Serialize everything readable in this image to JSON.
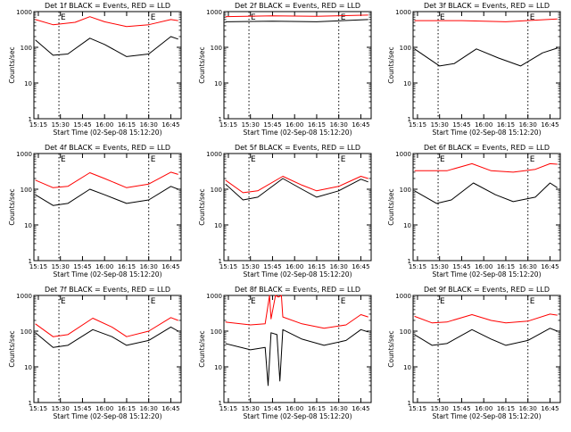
{
  "chart_data": [
    {
      "type": "line",
      "title": "Det 1f BLACK = Events, RED = LLD",
      "xlabel": "Start Time (02-Sep-08 15:12:20)",
      "ylabel": "Counts/sec",
      "yscale": "log",
      "ylim": [
        1,
        1000
      ],
      "x_ticks": [
        "15:15",
        "15:30",
        "15:45",
        "16:00",
        "16:15",
        "16:30",
        "16:45"
      ],
      "x_domain": [
        "15:12",
        "16:52"
      ],
      "markers": [
        {
          "time": "15:29",
          "label": "E"
        },
        {
          "time": "16:30",
          "label": "E"
        }
      ],
      "series": [
        {
          "color": "#ff0000",
          "points": [
            [
              "15:13",
              600
            ],
            [
              "15:25",
              430
            ],
            [
              "15:40",
              500
            ],
            [
              "15:50",
              720
            ],
            [
              "16:00",
              520
            ],
            [
              "16:15",
              380
            ],
            [
              "16:30",
              430
            ],
            [
              "16:45",
              600
            ],
            [
              "16:50",
              560
            ]
          ]
        },
        {
          "color": "#000000",
          "points": [
            [
              "15:13",
              160
            ],
            [
              "15:25",
              60
            ],
            [
              "15:35",
              65
            ],
            [
              "15:50",
              180
            ],
            [
              "16:00",
              120
            ],
            [
              "16:15",
              55
            ],
            [
              "16:30",
              65
            ],
            [
              "16:45",
              200
            ],
            [
              "16:50",
              170
            ]
          ]
        }
      ]
    },
    {
      "type": "line",
      "title": "Det 2f BLACK = Events, RED = LLD",
      "xlabel": "Start Time (02-Sep-08 15:12:20)",
      "ylabel": "Counts/sec",
      "yscale": "log",
      "ylim": [
        1,
        1000
      ],
      "x_ticks": [
        "15:15",
        "15:30",
        "15:45",
        "16:00",
        "16:15",
        "16:30",
        "16:45"
      ],
      "x_domain": [
        "15:12",
        "16:52"
      ],
      "markers": [
        {
          "time": "15:29",
          "label": "E"
        },
        {
          "time": "16:30",
          "label": "E"
        }
      ],
      "series": [
        {
          "color": "#ff0000",
          "points": [
            [
              "15:13",
              720
            ],
            [
              "15:45",
              760
            ],
            [
              "16:15",
              740
            ],
            [
              "16:50",
              800
            ]
          ]
        },
        {
          "color": "#000000",
          "points": [
            [
              "15:13",
              520
            ],
            [
              "15:45",
              540
            ],
            [
              "16:15",
              520
            ],
            [
              "16:50",
              600
            ]
          ]
        }
      ]
    },
    {
      "type": "line",
      "title": "Det 3f BLACK = Events, RED = LLD",
      "xlabel": "Start Time (02-Sep-08 15:12:20)",
      "ylabel": "Counts/sec",
      "yscale": "log",
      "ylim": [
        1,
        1000
      ],
      "x_ticks": [
        "15:15",
        "15:30",
        "15:45",
        "16:00",
        "16:15",
        "16:30",
        "16:45"
      ],
      "x_domain": [
        "15:12",
        "16:52"
      ],
      "markers": [
        {
          "time": "15:29",
          "label": "E"
        },
        {
          "time": "16:30",
          "label": "E"
        }
      ],
      "series": [
        {
          "color": "#ff0000",
          "points": [
            [
              "15:13",
              560
            ],
            [
              "15:45",
              560
            ],
            [
              "16:15",
              520
            ],
            [
              "16:50",
              620
            ]
          ]
        },
        {
          "color": "#000000",
          "points": [
            [
              "15:13",
              90
            ],
            [
              "15:30",
              30
            ],
            [
              "15:40",
              35
            ],
            [
              "15:55",
              90
            ],
            [
              "16:10",
              50
            ],
            [
              "16:25",
              30
            ],
            [
              "16:40",
              70
            ],
            [
              "16:50",
              95
            ]
          ]
        }
      ]
    },
    {
      "type": "line",
      "title": "Det 4f BLACK = Events, RED = LLD",
      "xlabel": "Start Time (02-Sep-08 15:12:20)",
      "ylabel": "Counts/sec",
      "yscale": "log",
      "ylim": [
        1,
        1000
      ],
      "x_ticks": [
        "15:15",
        "15:30",
        "15:45",
        "16:00",
        "16:15",
        "16:30",
        "16:45"
      ],
      "x_domain": [
        "15:12",
        "16:52"
      ],
      "markers": [
        {
          "time": "15:29",
          "label": "E"
        },
        {
          "time": "16:30",
          "label": "E"
        }
      ],
      "series": [
        {
          "color": "#ff0000",
          "points": [
            [
              "15:13",
              180
            ],
            [
              "15:25",
              110
            ],
            [
              "15:35",
              120
            ],
            [
              "15:50",
              290
            ],
            [
              "16:00",
              200
            ],
            [
              "16:15",
              110
            ],
            [
              "16:30",
              140
            ],
            [
              "16:45",
              300
            ],
            [
              "16:50",
              260
            ]
          ]
        },
        {
          "color": "#000000",
          "points": [
            [
              "15:13",
              70
            ],
            [
              "15:25",
              35
            ],
            [
              "15:35",
              40
            ],
            [
              "15:50",
              100
            ],
            [
              "16:00",
              70
            ],
            [
              "16:15",
              40
            ],
            [
              "16:30",
              50
            ],
            [
              "16:45",
              120
            ],
            [
              "16:50",
              100
            ]
          ]
        }
      ]
    },
    {
      "type": "line",
      "title": "Det 5f BLACK = Events, RED = LLD",
      "xlabel": "Start Time (02-Sep-08 15:12:20)",
      "ylabel": "Counts/sec",
      "yscale": "log",
      "ylim": [
        1,
        1000
      ],
      "x_ticks": [
        "15:15",
        "15:30",
        "15:45",
        "16:00",
        "16:15",
        "16:30",
        "16:45"
      ],
      "x_domain": [
        "15:12",
        "16:52"
      ],
      "markers": [
        {
          "time": "15:29",
          "label": "E"
        },
        {
          "time": "16:30",
          "label": "E"
        }
      ],
      "series": [
        {
          "color": "#ff0000",
          "points": [
            [
              "15:13",
              180
            ],
            [
              "15:25",
              80
            ],
            [
              "15:35",
              90
            ],
            [
              "15:52",
              230
            ],
            [
              "16:05",
              130
            ],
            [
              "16:15",
              90
            ],
            [
              "16:30",
              120
            ],
            [
              "16:45",
              230
            ],
            [
              "16:50",
              200
            ]
          ]
        },
        {
          "color": "#000000",
          "points": [
            [
              "15:13",
              140
            ],
            [
              "15:25",
              50
            ],
            [
              "15:35",
              60
            ],
            [
              "15:52",
              200
            ],
            [
              "16:05",
              100
            ],
            [
              "16:15",
              60
            ],
            [
              "16:30",
              90
            ],
            [
              "16:45",
              190
            ],
            [
              "16:50",
              160
            ]
          ]
        }
      ]
    },
    {
      "type": "line",
      "title": "Det 6f BLACK = Events, RED = LLD",
      "xlabel": "Start Time (02-Sep-08 15:12:20)",
      "ylabel": "Counts/sec",
      "yscale": "log",
      "ylim": [
        1,
        1000
      ],
      "x_ticks": [
        "15:15",
        "15:30",
        "15:45",
        "16:00",
        "16:15",
        "16:30",
        "16:45"
      ],
      "x_domain": [
        "15:12",
        "16:52"
      ],
      "markers": [
        {
          "time": "15:29",
          "label": "E"
        },
        {
          "time": "16:30",
          "label": "E"
        }
      ],
      "series": [
        {
          "color": "#ff0000",
          "points": [
            [
              "15:13",
              330
            ],
            [
              "15:35",
              330
            ],
            [
              "15:52",
              520
            ],
            [
              "16:05",
              330
            ],
            [
              "16:20",
              300
            ],
            [
              "16:35",
              360
            ],
            [
              "16:45",
              520
            ],
            [
              "16:50",
              500
            ]
          ]
        },
        {
          "color": "#000000",
          "points": [
            [
              "15:13",
              90
            ],
            [
              "15:28",
              40
            ],
            [
              "15:38",
              50
            ],
            [
              "15:53",
              150
            ],
            [
              "16:08",
              70
            ],
            [
              "16:20",
              45
            ],
            [
              "16:35",
              60
            ],
            [
              "16:45",
              150
            ],
            [
              "16:50",
              110
            ]
          ]
        }
      ]
    },
    {
      "type": "line",
      "title": "Det 7f BLACK = Events, RED = LLD",
      "xlabel": "Start Time (02-Sep-08 15:12:20)",
      "ylabel": "Counts/sec",
      "yscale": "log",
      "ylim": [
        1,
        1000
      ],
      "x_ticks": [
        "15:15",
        "15:30",
        "15:45",
        "16:00",
        "16:15",
        "16:30",
        "16:45"
      ],
      "x_domain": [
        "15:12",
        "16:52"
      ],
      "markers": [
        {
          "time": "15:29",
          "label": "E"
        },
        {
          "time": "16:30",
          "label": "E"
        }
      ],
      "series": [
        {
          "color": "#ff0000",
          "points": [
            [
              "15:13",
              160
            ],
            [
              "15:25",
              70
            ],
            [
              "15:35",
              80
            ],
            [
              "15:52",
              230
            ],
            [
              "16:05",
              130
            ],
            [
              "16:15",
              70
            ],
            [
              "16:30",
              100
            ],
            [
              "16:45",
              240
            ],
            [
              "16:50",
              200
            ]
          ]
        },
        {
          "color": "#000000",
          "points": [
            [
              "15:13",
              90
            ],
            [
              "15:25",
              35
            ],
            [
              "15:35",
              40
            ],
            [
              "15:52",
              110
            ],
            [
              "16:05",
              70
            ],
            [
              "16:15",
              40
            ],
            [
              "16:30",
              55
            ],
            [
              "16:45",
              130
            ],
            [
              "16:50",
              100
            ]
          ]
        }
      ]
    },
    {
      "type": "line",
      "title": "Det 8f BLACK = Events, RED = LLD",
      "xlabel": "Start Time (02-Sep-08 15:12:20)",
      "ylabel": "Counts/sec",
      "yscale": "log",
      "ylim": [
        1,
        1000
      ],
      "x_ticks": [
        "15:15",
        "15:30",
        "15:45",
        "16:00",
        "16:15",
        "16:30",
        "16:45"
      ],
      "x_domain": [
        "15:12",
        "16:52"
      ],
      "markers": [
        {
          "time": "15:29",
          "label": "E"
        },
        {
          "time": "16:30",
          "label": "E"
        }
      ],
      "series": [
        {
          "color": "#ff0000",
          "points": [
            [
              "15:13",
              180
            ],
            [
              "15:30",
              150
            ],
            [
              "15:40",
              160
            ],
            [
              "15:43",
              1000
            ],
            [
              "15:44",
              220
            ],
            [
              "15:47",
              1000
            ],
            [
              "15:49",
              900
            ],
            [
              "15:51",
              1000
            ],
            [
              "15:52",
              250
            ],
            [
              "16:05",
              160
            ],
            [
              "16:20",
              120
            ],
            [
              "16:35",
              150
            ],
            [
              "16:45",
              290
            ],
            [
              "16:50",
              250
            ]
          ]
        },
        {
          "color": "#000000",
          "points": [
            [
              "15:13",
              45
            ],
            [
              "15:30",
              30
            ],
            [
              "15:40",
              35
            ],
            [
              "15:42",
              3
            ],
            [
              "15:44",
              90
            ],
            [
              "15:48",
              80
            ],
            [
              "15:50",
              4
            ],
            [
              "15:52",
              110
            ],
            [
              "16:05",
              60
            ],
            [
              "16:20",
              40
            ],
            [
              "16:35",
              55
            ],
            [
              "16:45",
              110
            ],
            [
              "16:50",
              95
            ]
          ]
        }
      ]
    },
    {
      "type": "line",
      "title": "Det 9f BLACK = Events, RED = LLD",
      "xlabel": "Start Time (02-Sep-08 15:12:20)",
      "ylabel": "Counts/sec",
      "yscale": "log",
      "ylim": [
        1,
        1000
      ],
      "x_ticks": [
        "15:15",
        "15:30",
        "15:45",
        "16:00",
        "16:15",
        "16:30",
        "16:45"
      ],
      "x_domain": [
        "15:12",
        "16:52"
      ],
      "markers": [
        {
          "time": "15:29",
          "label": "E"
        },
        {
          "time": "16:30",
          "label": "E"
        }
      ],
      "series": [
        {
          "color": "#ff0000",
          "points": [
            [
              "15:13",
              260
            ],
            [
              "15:25",
              170
            ],
            [
              "15:35",
              180
            ],
            [
              "15:52",
              290
            ],
            [
              "16:05",
              200
            ],
            [
              "16:15",
              170
            ],
            [
              "16:30",
              190
            ],
            [
              "16:45",
              300
            ],
            [
              "16:50",
              280
            ]
          ]
        },
        {
          "color": "#000000",
          "points": [
            [
              "15:13",
              80
            ],
            [
              "15:25",
              40
            ],
            [
              "15:35",
              45
            ],
            [
              "15:52",
              110
            ],
            [
              "16:05",
              60
            ],
            [
              "16:15",
              40
            ],
            [
              "16:30",
              55
            ],
            [
              "16:45",
              120
            ],
            [
              "16:50",
              100
            ]
          ]
        }
      ]
    }
  ]
}
